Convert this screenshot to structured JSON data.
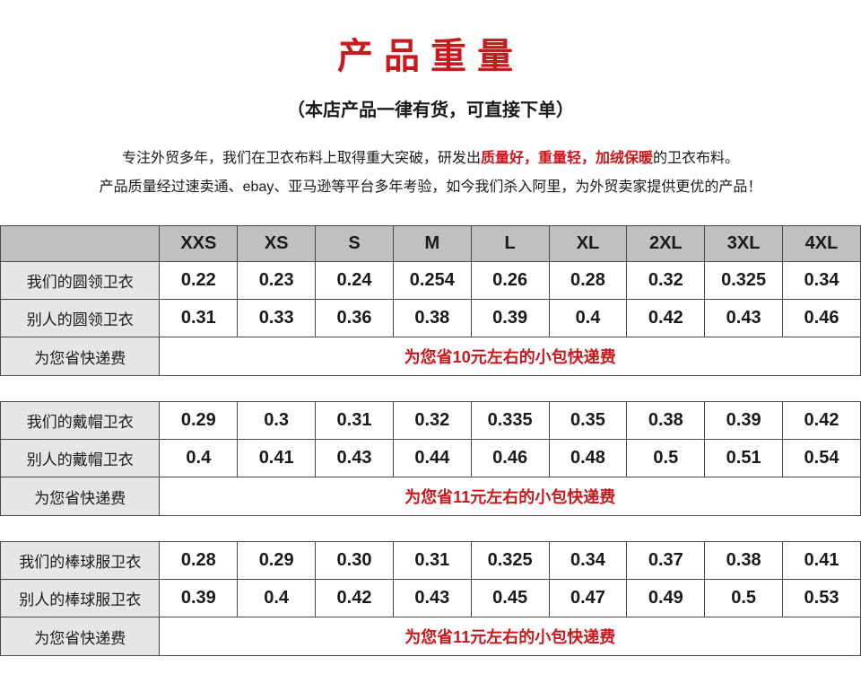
{
  "colors": {
    "accent_red": "#c8191e",
    "text": "#1a1a1a",
    "header_bg": "#c0c0c0",
    "label_bg": "#e6e6e6",
    "cell_bg": "#ffffff",
    "border": "#4a4a4a",
    "page_bg": "#ffffff"
  },
  "title": "产品重量",
  "subtitle": "（本店产品一律有货，可直接下单）",
  "desc": {
    "p1_a": "专注外贸多年，我们在卫衣布料上取得重大突破，研发出",
    "p1_h1": "质量好，重量轻，加绒保暖",
    "p1_b": "的卫衣布料。",
    "p2": "产品质量经过速卖通、ebay、亚马逊等平台多年考验，如今我们杀入阿里，为外贸卖家提供更优的产品！"
  },
  "sizes": [
    "XXS",
    "XS",
    "S",
    "M",
    "L",
    "XL",
    "2XL",
    "3XL",
    "4XL"
  ],
  "tables": [
    {
      "rows": [
        {
          "label": "我们的圆领卫衣",
          "values": [
            "0.22",
            "0.23",
            "0.24",
            "0.254",
            "0.26",
            "0.28",
            "0.32",
            "0.325",
            "0.34"
          ]
        },
        {
          "label": "别人的圆领卫衣",
          "values": [
            "0.31",
            "0.33",
            "0.36",
            "0.38",
            "0.39",
            "0.4",
            "0.42",
            "0.43",
            "0.46"
          ]
        }
      ],
      "savings_label": "为您省快递费",
      "savings_text": "为您省10元左右的小包快递费"
    },
    {
      "rows": [
        {
          "label": "我们的戴帽卫衣",
          "values": [
            "0.29",
            "0.3",
            "0.31",
            "0.32",
            "0.335",
            "0.35",
            "0.38",
            "0.39",
            "0.42"
          ]
        },
        {
          "label": "别人的戴帽卫衣",
          "values": [
            "0.4",
            "0.41",
            "0.43",
            "0.44",
            "0.46",
            "0.48",
            "0.5",
            "0.51",
            "0.54"
          ]
        }
      ],
      "savings_label": "为您省快递费",
      "savings_text": "为您省11元左右的小包快递费"
    },
    {
      "rows": [
        {
          "label": "我们的棒球服卫衣",
          "values": [
            "0.28",
            "0.29",
            "0.30",
            "0.31",
            "0.325",
            "0.34",
            "0.37",
            "0.38",
            "0.41"
          ]
        },
        {
          "label": "别人的棒球服卫衣",
          "values": [
            "0.39",
            "0.4",
            "0.42",
            "0.43",
            "0.45",
            "0.47",
            "0.49",
            "0.5",
            "0.53"
          ]
        }
      ],
      "savings_label": "为您省快递费",
      "savings_text": "为您省11元左右的小包快递费"
    }
  ]
}
